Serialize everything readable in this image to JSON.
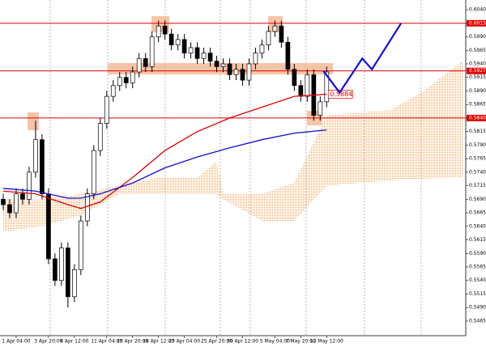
{
  "chart_data": {
    "type": "candlestick",
    "categories": [
      null,
      null,
      "1 Apr 04:00",
      null,
      null,
      null,
      null,
      "3 Apr 20:00",
      null,
      null,
      null,
      "8 Apr 12:00",
      null,
      null,
      null,
      null,
      "11 Apr 04:00",
      null,
      null,
      null,
      "15 Apr 20:00",
      null,
      null,
      null,
      "18 Apr 12:00",
      null,
      null,
      null,
      "23 Apr 04:00",
      null,
      null,
      null,
      null,
      "25 Apr 20:00",
      null,
      null,
      null,
      "30 Apr 12:00",
      null,
      null,
      null,
      null,
      "5 May 04:00",
      null,
      null,
      null,
      "7 May 20:00",
      null,
      null,
      null,
      "12 May 12:00"
    ],
    "ohlc": [
      [
        0.569,
        0.57,
        0.567,
        0.568
      ],
      [
        0.568,
        0.569,
        0.5655,
        0.5665
      ],
      [
        0.5665,
        0.571,
        0.5655,
        0.57
      ],
      [
        0.57,
        0.571,
        0.568,
        0.569
      ],
      [
        0.569,
        0.575,
        0.568,
        0.574
      ],
      [
        0.574,
        0.5835,
        0.573,
        0.58
      ],
      [
        0.58,
        0.581,
        0.569,
        0.57
      ],
      [
        0.57,
        0.571,
        0.557,
        0.558
      ],
      [
        0.558,
        0.559,
        0.553,
        0.554
      ],
      [
        0.554,
        0.561,
        0.553,
        0.56
      ],
      [
        0.56,
        0.561,
        0.549,
        0.551
      ],
      [
        0.551,
        0.557,
        0.55,
        0.556
      ],
      [
        0.556,
        0.566,
        0.555,
        0.565
      ],
      [
        0.565,
        0.571,
        0.564,
        0.57
      ],
      [
        0.57,
        0.579,
        0.569,
        0.578
      ],
      [
        0.578,
        0.584,
        0.577,
        0.583
      ],
      [
        0.583,
        0.589,
        0.582,
        0.588
      ],
      [
        0.588,
        0.591,
        0.587,
        0.59
      ],
      [
        0.59,
        0.5925,
        0.589,
        0.5915
      ],
      [
        0.5915,
        0.5925,
        0.5895,
        0.5905
      ],
      [
        0.5905,
        0.5935,
        0.5895,
        0.5925
      ],
      [
        0.5925,
        0.596,
        0.5915,
        0.595
      ],
      [
        0.595,
        0.596,
        0.5925,
        0.5935
      ],
      [
        0.5935,
        0.6,
        0.5925,
        0.599
      ],
      [
        0.599,
        0.602,
        0.598,
        0.601
      ],
      [
        0.601,
        0.602,
        0.5985,
        0.5995
      ],
      [
        0.5995,
        0.6005,
        0.5965,
        0.5975
      ],
      [
        0.5975,
        0.5995,
        0.5965,
        0.5985
      ],
      [
        0.5985,
        0.5995,
        0.595,
        0.596
      ],
      [
        0.596,
        0.598,
        0.595,
        0.597
      ],
      [
        0.597,
        0.598,
        0.594,
        0.595
      ],
      [
        0.595,
        0.597,
        0.594,
        0.596
      ],
      [
        0.596,
        0.597,
        0.5935,
        0.5945
      ],
      [
        0.5945,
        0.5955,
        0.5925,
        0.5935
      ],
      [
        0.5935,
        0.595,
        0.5925,
        0.594
      ],
      [
        0.594,
        0.595,
        0.591,
        0.592
      ],
      [
        0.592,
        0.594,
        0.591,
        0.593
      ],
      [
        0.593,
        0.594,
        0.59,
        0.591
      ],
      [
        0.591,
        0.595,
        0.59,
        0.594
      ],
      [
        0.594,
        0.597,
        0.593,
        0.596
      ],
      [
        0.596,
        0.5985,
        0.595,
        0.5975
      ],
      [
        0.5975,
        0.601,
        0.5965,
        0.6
      ],
      [
        0.6,
        0.602,
        0.599,
        0.601
      ],
      [
        0.601,
        0.602,
        0.597,
        0.598
      ],
      [
        0.598,
        0.599,
        0.592,
        0.593
      ],
      [
        0.593,
        0.594,
        0.589,
        0.59
      ],
      [
        0.59,
        0.591,
        0.587,
        0.588
      ],
      [
        0.588,
        0.593,
        0.587,
        0.592
      ],
      [
        0.592,
        0.593,
        0.5835,
        0.5845
      ],
      [
        0.5845,
        0.588,
        0.5835,
        0.587
      ],
      [
        0.587,
        0.5935,
        0.586,
        0.5925
      ]
    ],
    "xlim": [
      -0.5,
      71.5
    ],
    "ylim": [
      0.5438,
      0.6058
    ],
    "yticks": [
      {
        "value": 0.604,
        "label": "0.6040"
      },
      0.6015,
      {
        "value": 0.599,
        "label": "0.5990"
      },
      0.5965,
      {
        "value": 0.594,
        "label": "0.5940"
      },
      0.5915,
      {
        "value": 0.589,
        "label": "0.5890"
      },
      0.5865,
      {
        "value": 0.584,
        "label": "0.5840"
      },
      0.5815,
      {
        "value": 0.579,
        "label": "0.5790"
      },
      0.5765,
      {
        "value": 0.574,
        "label": "0.5740"
      },
      0.5715,
      {
        "value": 0.569,
        "label": "0.5690"
      },
      0.5665,
      {
        "value": 0.564,
        "label": "0.5640"
      },
      0.5615,
      {
        "value": 0.559,
        "label": "0.5590"
      },
      0.5565,
      {
        "value": 0.554,
        "label": "0.5540"
      },
      0.5515,
      {
        "value": 0.549,
        "label": "0.5490"
      },
      0.5465
    ],
    "levels": [
      0.6015,
      0.5927,
      {
        "value": 0.584,
        "label": "0.5840"
      }
    ],
    "level_color": "#e00000",
    "ma_lines": [
      {
        "color": "#e00000",
        "x": [
          0,
          5,
          10,
          12,
          15,
          20,
          25,
          30,
          35,
          40,
          45,
          50
        ],
        "values": [
          0.5705,
          0.57,
          0.568,
          0.5673,
          0.5685,
          0.573,
          0.578,
          0.5815,
          0.584,
          0.586,
          0.588,
          0.5884
        ],
        "end_label": "0.5884"
      },
      {
        "color": "#1010d0",
        "x": [
          0,
          5,
          10,
          12,
          15,
          20,
          25,
          30,
          35,
          40,
          45,
          50
        ],
        "values": [
          0.571,
          0.5705,
          0.5692,
          0.5692,
          0.57,
          0.572,
          0.5748,
          0.5768,
          0.5785,
          0.58,
          0.5812,
          0.5818
        ]
      }
    ],
    "cloud": {
      "color": "#f0a050",
      "x": [
        0,
        6,
        12,
        18,
        24,
        30,
        33,
        34,
        40,
        45,
        50,
        55,
        60,
        65,
        71
      ],
      "upper": [
        0.569,
        0.569,
        0.57,
        0.5715,
        0.573,
        0.573,
        0.576,
        0.57,
        0.57,
        0.572,
        0.5845,
        0.585,
        0.5855,
        0.589,
        0.5945
      ],
      "lower": [
        0.563,
        0.564,
        0.566,
        0.57,
        0.57,
        0.57,
        0.57,
        0.569,
        0.565,
        0.565,
        0.5715,
        0.572,
        0.5725,
        0.5728,
        0.573
      ]
    },
    "projection": {
      "color": "#1010e0",
      "x": [
        49.5,
        52,
        55.5,
        57,
        61.5
      ],
      "values": [
        0.5927,
        0.5887,
        0.595,
        0.593,
        0.6015
      ]
    }
  }
}
